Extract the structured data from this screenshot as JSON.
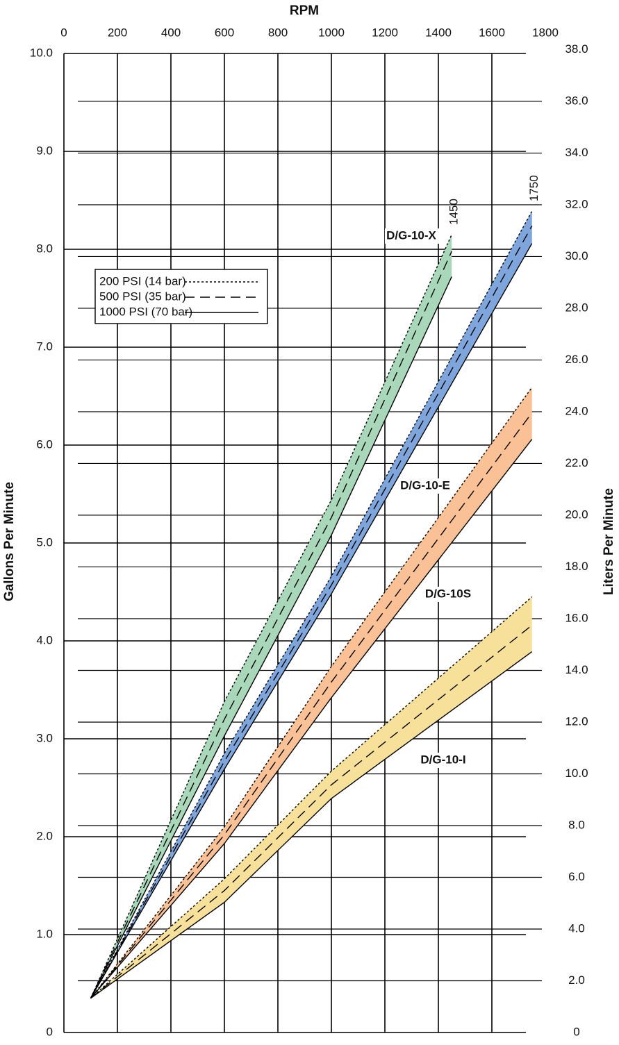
{
  "chart_data": {
    "type": "line",
    "x_label": "RPM",
    "y_label": "Gallons Per Minute",
    "y2_label": "Liters Per Minute",
    "xlim": [
      0,
      1800
    ],
    "xticks": [
      0,
      200,
      400,
      600,
      800,
      1000,
      1200,
      1400,
      1600,
      1800
    ],
    "ylim": [
      0,
      10
    ],
    "yticks": [
      0,
      {
        "value": 1,
        "label": "1.0"
      },
      {
        "value": 2,
        "label": "2.0"
      },
      {
        "value": 3,
        "label": "3.0"
      },
      {
        "value": 4,
        "label": "4.0"
      },
      {
        "value": 5,
        "label": "5.0"
      },
      {
        "value": 6,
        "label": "6.0"
      },
      {
        "value": 7,
        "label": "7.0"
      },
      {
        "value": 8,
        "label": "8.0"
      },
      {
        "value": 9,
        "label": "9.0"
      },
      {
        "value": 10,
        "label": "10.0"
      }
    ],
    "y2lim": [
      0,
      37.85
    ],
    "y2ticks": [
      0,
      {
        "value": 2,
        "label": "2.0"
      },
      {
        "value": 4,
        "label": "4.0"
      },
      {
        "value": 6,
        "label": "6.0"
      },
      {
        "value": 8,
        "label": "8.0"
      },
      {
        "value": 10,
        "label": "10.0"
      },
      {
        "value": 12,
        "label": "12.0"
      },
      {
        "value": 14,
        "label": "14.0"
      },
      {
        "value": 16,
        "label": "16.0"
      },
      {
        "value": 18,
        "label": "18.0"
      },
      {
        "value": 20,
        "label": "20.0"
      },
      {
        "value": 22,
        "label": "22.0"
      },
      {
        "value": 24,
        "label": "24.0"
      },
      {
        "value": 26,
        "label": "26.0"
      },
      {
        "value": 28,
        "label": "28.0"
      },
      {
        "value": 30,
        "label": "30.0"
      },
      {
        "value": 32,
        "label": "32.0"
      },
      {
        "value": 34,
        "label": "34.0"
      },
      {
        "value": 36,
        "label": "36.0"
      },
      {
        "value": 38,
        "label": "38.0"
      }
    ],
    "legend": [
      {
        "name": "200 PSI (14 bar)",
        "dash": "3,3"
      },
      {
        "name": "500 PSI (35 bar)",
        "dash": "14,8"
      },
      {
        "name": "1000 PSI (70 bar)",
        "dash": "none"
      }
    ],
    "bands": [
      {
        "label": "D/G-10-X",
        "color": "#a8d8b9",
        "x": [
          100,
          600,
          1000,
          1450
        ],
        "end_label": true,
        "lines": [
          {
            "values": [
              0.35,
              3.38,
              5.44,
              8.15
            ]
          },
          {
            "values": [
              0.35,
              3.2,
              5.26,
              7.98
            ]
          },
          {
            "values": [
              0.35,
              3.03,
              5.08,
              7.72
            ]
          }
        ]
      },
      {
        "label": "D/G-10-E",
        "color": "#7ea6dc",
        "x": [
          100,
          600,
          1000,
          1750
        ],
        "end_label": true,
        "lines": [
          {
            "values": [
              0.35,
              2.85,
              4.66,
              8.39
            ]
          },
          {
            "values": [
              0.35,
              2.77,
              4.57,
              8.24
            ]
          },
          {
            "values": [
              0.35,
              2.69,
              4.48,
              8.06
            ]
          }
        ]
      },
      {
        "label": "D/G-10S",
        "color": "#f9c195",
        "x": [
          100,
          600,
          1000,
          1750
        ],
        "end_label": false,
        "lines": [
          {
            "values": [
              0.35,
              2.1,
              3.74,
              6.59
            ]
          },
          {
            "values": [
              0.35,
              2.02,
              3.58,
              6.33
            ]
          },
          {
            "values": [
              0.35,
              1.93,
              3.42,
              6.06
            ]
          }
        ]
      },
      {
        "label": "D/G-10-I",
        "color": "#f7e19a",
        "x": [
          100,
          600,
          1000,
          1750
        ],
        "end_label": false,
        "lines": [
          {
            "values": [
              0.35,
              1.57,
              2.67,
              4.45
            ]
          },
          {
            "values": [
              0.35,
              1.45,
              2.53,
              4.16
            ]
          },
          {
            "values": [
              0.35,
              1.33,
              2.39,
              3.89
            ]
          }
        ]
      }
    ]
  }
}
